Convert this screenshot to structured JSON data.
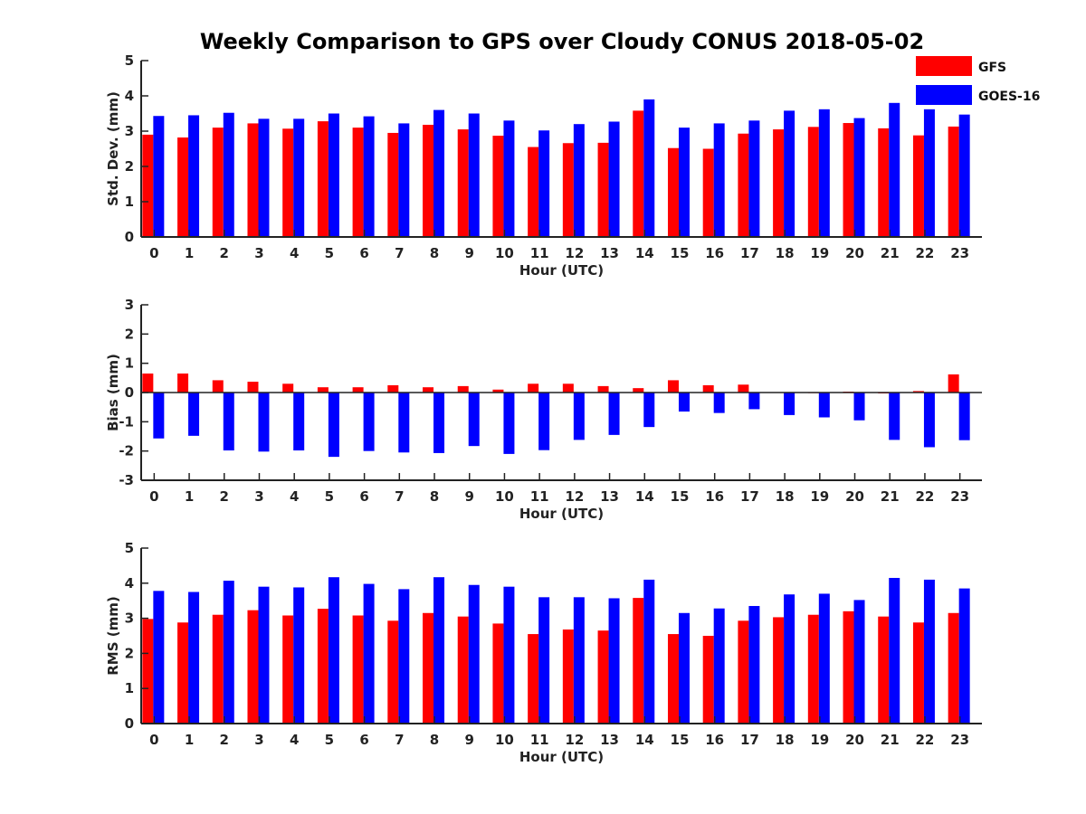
{
  "title": "Weekly Comparison to GPS over Cloudy CONUS 2018-05-02",
  "colors": {
    "GFS": "#ff0000",
    "GOES-16": "#0000ff"
  },
  "legend": [
    {
      "name": "GFS",
      "color": "#ff0000"
    },
    {
      "name": "GOES-16",
      "color": "#0000ff"
    }
  ],
  "chart_data": [
    {
      "type": "bar",
      "xlabel": "Hour (UTC)",
      "ylabel": "Std. Dev. (mm)",
      "ylim": [
        0,
        5
      ],
      "yticks": [
        0,
        1,
        2,
        3,
        4,
        5
      ],
      "categories": [
        "0",
        "1",
        "2",
        "3",
        "4",
        "5",
        "6",
        "7",
        "8",
        "9",
        "10",
        "11",
        "12",
        "13",
        "14",
        "15",
        "16",
        "17",
        "18",
        "19",
        "20",
        "21",
        "22",
        "23"
      ],
      "legend_position": "top-right, outside plot",
      "series": [
        {
          "name": "GFS",
          "values": [
            2.9,
            2.82,
            3.1,
            3.22,
            3.07,
            3.28,
            3.1,
            2.95,
            3.18,
            3.05,
            2.87,
            2.55,
            2.66,
            2.67,
            3.58,
            2.52,
            2.5,
            2.93,
            3.05,
            3.12,
            3.23,
            3.08,
            2.88,
            3.13
          ]
        },
        {
          "name": "GOES-16",
          "values": [
            3.43,
            3.45,
            3.52,
            3.35,
            3.35,
            3.5,
            3.42,
            3.22,
            3.6,
            3.5,
            3.3,
            3.02,
            3.2,
            3.27,
            3.9,
            3.1,
            3.22,
            3.3,
            3.58,
            3.62,
            3.37,
            3.8,
            3.62,
            3.47
          ]
        }
      ]
    },
    {
      "type": "bar",
      "xlabel": "Hour (UTC)",
      "ylabel": "Bias (mm)",
      "ylim": [
        -3,
        3
      ],
      "yticks": [
        -3,
        -2,
        -1,
        0,
        1,
        2,
        3
      ],
      "categories": [
        "0",
        "1",
        "2",
        "3",
        "4",
        "5",
        "6",
        "7",
        "8",
        "9",
        "10",
        "11",
        "12",
        "13",
        "14",
        "15",
        "16",
        "17",
        "18",
        "19",
        "20",
        "21",
        "22",
        "23"
      ],
      "series": [
        {
          "name": "GFS",
          "values": [
            0.65,
            0.65,
            0.42,
            0.37,
            0.3,
            0.18,
            0.18,
            0.25,
            0.18,
            0.22,
            0.1,
            0.3,
            0.3,
            0.22,
            0.15,
            0.42,
            0.25,
            0.27,
            0.0,
            -0.02,
            0.03,
            -0.03,
            0.05,
            0.62
          ]
        },
        {
          "name": "GOES-16",
          "values": [
            -1.57,
            -1.48,
            -1.98,
            -2.02,
            -1.98,
            -2.2,
            -2.0,
            -2.05,
            -2.07,
            -1.83,
            -2.1,
            -1.97,
            -1.62,
            -1.45,
            -1.18,
            -0.65,
            -0.7,
            -0.57,
            -0.77,
            -0.85,
            -0.95,
            -1.62,
            -1.87,
            -1.63
          ]
        }
      ]
    },
    {
      "type": "bar",
      "xlabel": "Hour (UTC)",
      "ylabel": "RMS (mm)",
      "ylim": [
        0,
        5
      ],
      "yticks": [
        0,
        1,
        2,
        3,
        4,
        5
      ],
      "categories": [
        "0",
        "1",
        "2",
        "3",
        "4",
        "5",
        "6",
        "7",
        "8",
        "9",
        "10",
        "11",
        "12",
        "13",
        "14",
        "15",
        "16",
        "17",
        "18",
        "19",
        "20",
        "21",
        "22",
        "23"
      ],
      "series": [
        {
          "name": "GFS",
          "values": [
            2.98,
            2.88,
            3.1,
            3.23,
            3.08,
            3.27,
            3.08,
            2.93,
            3.15,
            3.05,
            2.85,
            2.55,
            2.68,
            2.65,
            3.58,
            2.55,
            2.5,
            2.93,
            3.03,
            3.1,
            3.2,
            3.05,
            2.88,
            3.15
          ]
        },
        {
          "name": "GOES-16",
          "values": [
            3.78,
            3.75,
            4.07,
            3.9,
            3.88,
            4.17,
            3.98,
            3.83,
            4.17,
            3.95,
            3.9,
            3.6,
            3.6,
            3.57,
            4.1,
            3.15,
            3.28,
            3.35,
            3.68,
            3.7,
            3.52,
            4.15,
            4.1,
            3.85
          ]
        }
      ]
    }
  ]
}
